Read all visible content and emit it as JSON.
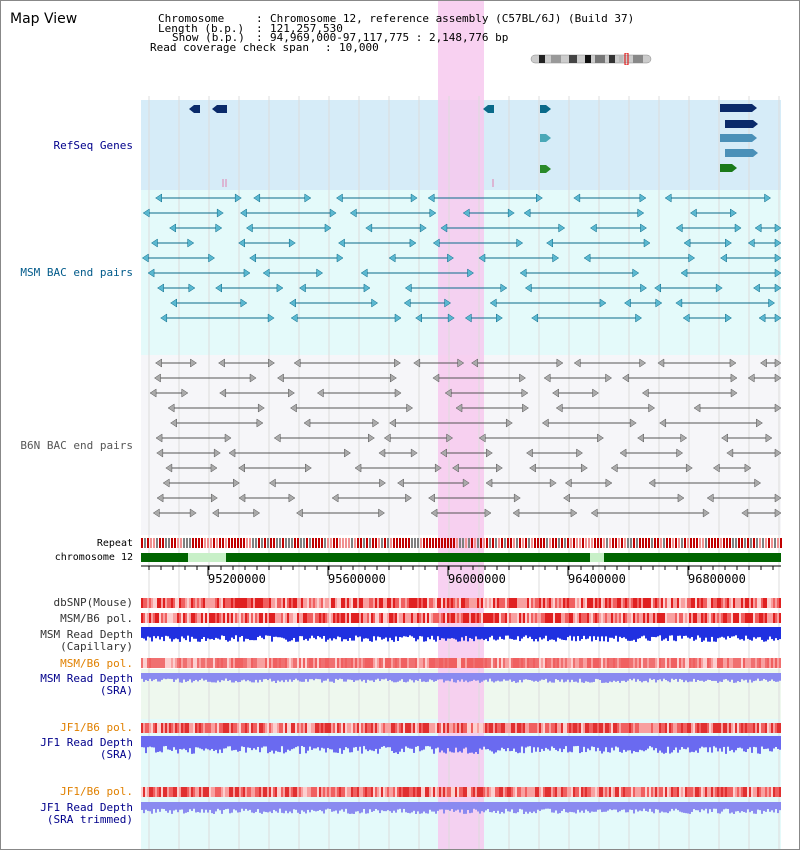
{
  "title": "Map View",
  "info": {
    "chromosome_label": "Chromosome",
    "chromosome_value": "Chromosome 12, reference assembly (C57BL/6J) (Build 37)",
    "length_label": "Length (b.p.)",
    "length_value": "121,257,530",
    "show_label": "Show (b.p.)",
    "show_value": "94,969,000-97,117,775 : 2,148,776 bp",
    "span_label": "Read coverage check span",
    "span_value": "10,000"
  },
  "tracks": {
    "refseq": "RefSeq Genes",
    "msm_bac": "MSM BAC end pairs",
    "b6n_bac": "B6N BAC end pairs",
    "repeat": "Repeat",
    "chromosome": "chromosome 12",
    "dbsnp": "dbSNP(Mouse)",
    "msm_b6_pol": "MSM/B6 pol.",
    "msm_read_depth_cap_1": "MSM Read Depth",
    "msm_read_depth_cap_2": "(Capillary)",
    "msm_b6_pol_sra": "MSM/B6 pol.",
    "msm_read_depth_sra_1": "MSM Read Depth",
    "msm_read_depth_sra_2": "(SRA)",
    "jf1_b6_pol": "JF1/B6 pol.",
    "jf1_read_depth_1": "JF1 Read Depth",
    "jf1_read_depth_2": "(SRA)",
    "jf1_b6_pol_2": "JF1/B6 pol.",
    "jf1_read_depth_t1": "JF1 Read Depth",
    "jf1_read_depth_t2": "(SRA trimmed)"
  },
  "axis_ticks": [
    "95200000",
    "95600000",
    "96000000",
    "96400000",
    "96800000"
  ],
  "colors": {
    "refseq_bg": "#d6ecf8",
    "msm_bg": "#e4fafa",
    "b6n_bg": "#f4f4f8",
    "highlight": "#f7c9ee",
    "dark_blue": "#0a2a6a",
    "teal": "#0a6a8a",
    "gray": "#555555",
    "chrom_green": "#006400",
    "snp_red": "#e02020",
    "depth_blue": "#2030e0",
    "depth_light": "#8a8af0",
    "orange": "#e08000",
    "navy_label": "#00008b"
  }
}
